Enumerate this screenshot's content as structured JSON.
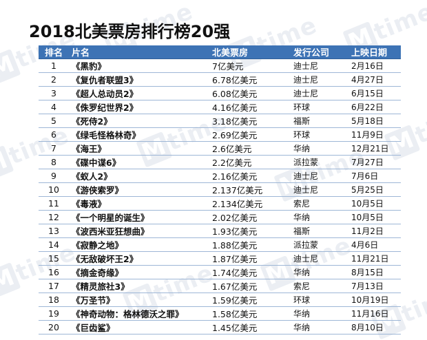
{
  "title": "2018北美票房排行榜20强",
  "watermark_text": "time",
  "colors": {
    "header_bg": "#3d73b5",
    "header_text": "#ffffff",
    "row_rule": "#9db6d6",
    "watermark": "#e9edf2"
  },
  "table": {
    "headers": [
      "排名",
      "片名",
      "北美票房",
      "发行公司",
      "上映日期"
    ],
    "rows": [
      {
        "rank": "1",
        "title": "《黑豹》",
        "box": "7亿美元",
        "distributor": "迪士尼",
        "release": "2月16日"
      },
      {
        "rank": "2",
        "title": "《复仇者联盟3》",
        "box": "6.78亿美元",
        "distributor": "迪士尼",
        "release": "4月27日"
      },
      {
        "rank": "3",
        "title": "《超人总动员2》",
        "box": "6.08亿美元",
        "distributor": "迪士尼",
        "release": "6月15日"
      },
      {
        "rank": "4",
        "title": "《侏罗纪世界2》",
        "box": "4.16亿美元",
        "distributor": "环球",
        "release": "6月22日"
      },
      {
        "rank": "5",
        "title": "《死侍2》",
        "box": "3.18亿美元",
        "distributor": "福斯",
        "release": "5月18日"
      },
      {
        "rank": "6",
        "title": "《绿毛怪格林奇》",
        "box": "2.69亿美元",
        "distributor": "环球",
        "release": "11月9日"
      },
      {
        "rank": "7",
        "title": "《海王》",
        "box": "2.6亿美元",
        "distributor": "华纳",
        "release": "12月21日"
      },
      {
        "rank": "8",
        "title": "《碟中谍6》",
        "box": "2.2亿美元",
        "distributor": "派拉蒙",
        "release": "7月27日"
      },
      {
        "rank": "9",
        "title": "《蚁人2》",
        "box": "2.16亿美元",
        "distributor": "迪士尼",
        "release": "7月6日"
      },
      {
        "rank": "10",
        "title": "《游侠索罗》",
        "box": "2.137亿美元",
        "distributor": "迪士尼",
        "release": "5月25日"
      },
      {
        "rank": "11",
        "title": "《毒液》",
        "box": "2.134亿美元",
        "distributor": "索尼",
        "release": "10月5日"
      },
      {
        "rank": "12",
        "title": "《一个明星的诞生》",
        "box": "2.02亿美元",
        "distributor": "华纳",
        "release": "10月5日"
      },
      {
        "rank": "13",
        "title": "《波西米亚狂想曲》",
        "box": "1.93亿美元",
        "distributor": "福斯",
        "release": "11月2日"
      },
      {
        "rank": "14",
        "title": "《寂静之地》",
        "box": "1.88亿美元",
        "distributor": "派拉蒙",
        "release": "4月6日"
      },
      {
        "rank": "15",
        "title": "《无敌破坏王2》",
        "box": "1.87亿美元",
        "distributor": "迪士尼",
        "release": "11月21日"
      },
      {
        "rank": "16",
        "title": "《摘金奇缘》",
        "box": "1.74亿美元",
        "distributor": "华纳",
        "release": "8月15日"
      },
      {
        "rank": "17",
        "title": "《精灵旅社3》",
        "box": "1.67亿美元",
        "distributor": "索尼",
        "release": "7月13日"
      },
      {
        "rank": "18",
        "title": "《万圣节》",
        "box": "1.59亿美元",
        "distributor": "环球",
        "release": "10月19日"
      },
      {
        "rank": "19",
        "title": "《神奇动物：格林德沃之罪》",
        "box": "1.58亿美元",
        "distributor": "华纳",
        "release": "11月16日"
      },
      {
        "rank": "20",
        "title": "《巨齿鲨》",
        "box": "1.45亿美元",
        "distributor": "华纳",
        "release": "8月10日"
      }
    ]
  }
}
